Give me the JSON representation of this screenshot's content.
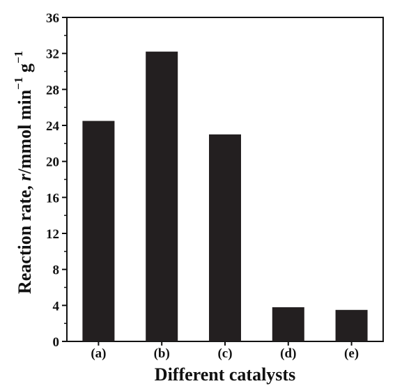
{
  "chart_data": {
    "type": "bar",
    "categories": [
      "(a)",
      "(b)",
      "(c)",
      "(d)",
      "(e)"
    ],
    "values": [
      24.5,
      32.2,
      23.0,
      3.8,
      3.5
    ],
    "xlabel": "Different catalysts",
    "ylabel": {
      "prefix": "Reaction rate, ",
      "symbol": "r",
      "unit_mmol": "/mmol min",
      "exp1": "−1",
      "unit_g": " g",
      "exp2": "−1"
    },
    "ylim": [
      0,
      36
    ],
    "yticks": [
      0,
      4,
      8,
      12,
      16,
      20,
      24,
      28,
      32,
      36
    ],
    "bar_color": "#231f20",
    "grid": false,
    "legend": "none"
  }
}
